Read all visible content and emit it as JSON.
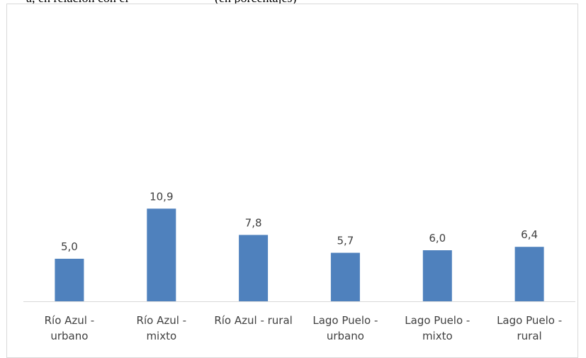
{
  "header": {
    "caption_left": "a, en relación con el",
    "caption_right": "(en porcentajes)"
  },
  "chart_data": {
    "type": "bar",
    "title": "",
    "xlabel": "",
    "ylabel": "",
    "categories": [
      [
        "Río Azul -",
        "urbano"
      ],
      [
        "Río Azul -",
        "mixto"
      ],
      [
        "Río Azul - rural"
      ],
      [
        "Lago Puelo -",
        "urbano"
      ],
      [
        "Lago Puelo -",
        "mixto"
      ],
      [
        "Lago Puelo -",
        "rural"
      ]
    ],
    "values": [
      5.0,
      10.9,
      7.8,
      5.7,
      6.0,
      6.4
    ],
    "data_labels": [
      "5,0",
      "10,9",
      "7,8",
      "5,7",
      "6,0",
      "6,4"
    ],
    "ylim": [
      0,
      34.6
    ],
    "grid": false,
    "legend": "none",
    "bar_color": "#4f81bd",
    "axis_color": "#d9d9d9",
    "text_color": "#404040"
  }
}
